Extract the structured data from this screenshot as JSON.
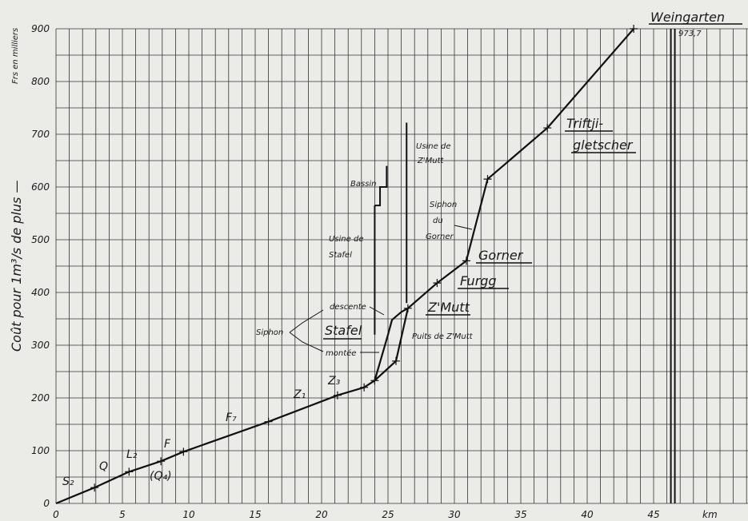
{
  "chart_data": {
    "type": "line",
    "ylabel": "Coût pour 1m³/s de plus —",
    "yunit": "Frs en milliers",
    "xunit": "km",
    "xlim": [
      0,
      52
    ],
    "ylim": [
      0,
      900
    ],
    "grid": true,
    "x_ticks": [
      "0",
      "5",
      "10",
      "15",
      "20",
      "25",
      "30",
      "35",
      "40",
      "45"
    ],
    "y_ticks": [
      "0",
      "100",
      "200",
      "300",
      "400",
      "500",
      "600",
      "700",
      "800",
      "900"
    ],
    "series": [
      {
        "x": [
          0,
          2.9,
          5.5,
          7.9,
          9.6,
          16.0,
          21.2,
          23.2,
          24.0,
          25.6,
          26.5,
          28.7,
          30.9,
          32.5,
          37.0,
          43.5
        ],
        "y": [
          0,
          30,
          60,
          80,
          98,
          155,
          205,
          220,
          233,
          270,
          370,
          418,
          460,
          615,
          712,
          900
        ]
      }
    ],
    "siphon_lines": [
      {
        "x": [
          24.0,
          25.0,
          25.3,
          26.0,
          26.5
        ],
        "y": [
          233,
          320,
          348,
          363,
          370
        ]
      }
    ],
    "vertical_bars": [
      {
        "x": 24.0,
        "y": [
          320,
          565
        ]
      },
      {
        "x": 26.4,
        "y": [
          380,
          722
        ]
      },
      {
        "x": 46.3,
        "y": [
          0,
          900
        ]
      },
      {
        "x": 46.6,
        "y": [
          0,
          900
        ]
      }
    ],
    "annotations": {
      "S2": "S₂",
      "Q": "Q",
      "L2": "L₂",
      "F": "F",
      "Q4": "(Q₄)",
      "F7": "F₇",
      "Z1": "Z₁",
      "Z3": "Z₃",
      "stafel": "Stafel",
      "zmutt": "Z'Mutt",
      "furgg": "Furgg",
      "gorner": "Gorner",
      "triftji_1": "Triftji-",
      "triftji_2": "gletscher",
      "weingarten": "Weingarten",
      "weingarten_value": "973,7",
      "siphon": "Siphon",
      "descente": "descente",
      "montee": "montée",
      "puits": "Puits de Z'Mutt",
      "bassin": "Bassin",
      "usine_stafel_1": "Usine de",
      "usine_stafel_2": "Stafel",
      "usine_zmutt_1": "Usine de",
      "usine_zmutt_2": "Z'Mutt",
      "siphon_gorner_1": "Siphon",
      "siphon_gorner_2": "du",
      "siphon_gorner_3": "Gorner"
    }
  }
}
